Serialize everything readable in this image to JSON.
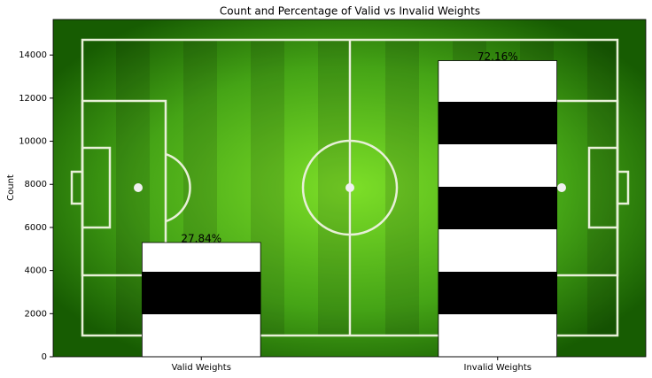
{
  "chart_data": {
    "type": "bar",
    "title": "Count and Percentage of Valid vs Invalid Weights",
    "ylabel": "Count",
    "categories": [
      "Valid Weights",
      "Invalid Weights"
    ],
    "values": [
      5300,
      13740
    ],
    "annotations": [
      "27.84%",
      "72.16%"
    ],
    "ylim": [
      0,
      15650
    ],
    "yticks": [
      0,
      2000,
      4000,
      6000,
      8000,
      10000,
      12000,
      14000
    ],
    "colors": [
      "#ffffff",
      "#000000"
    ]
  }
}
